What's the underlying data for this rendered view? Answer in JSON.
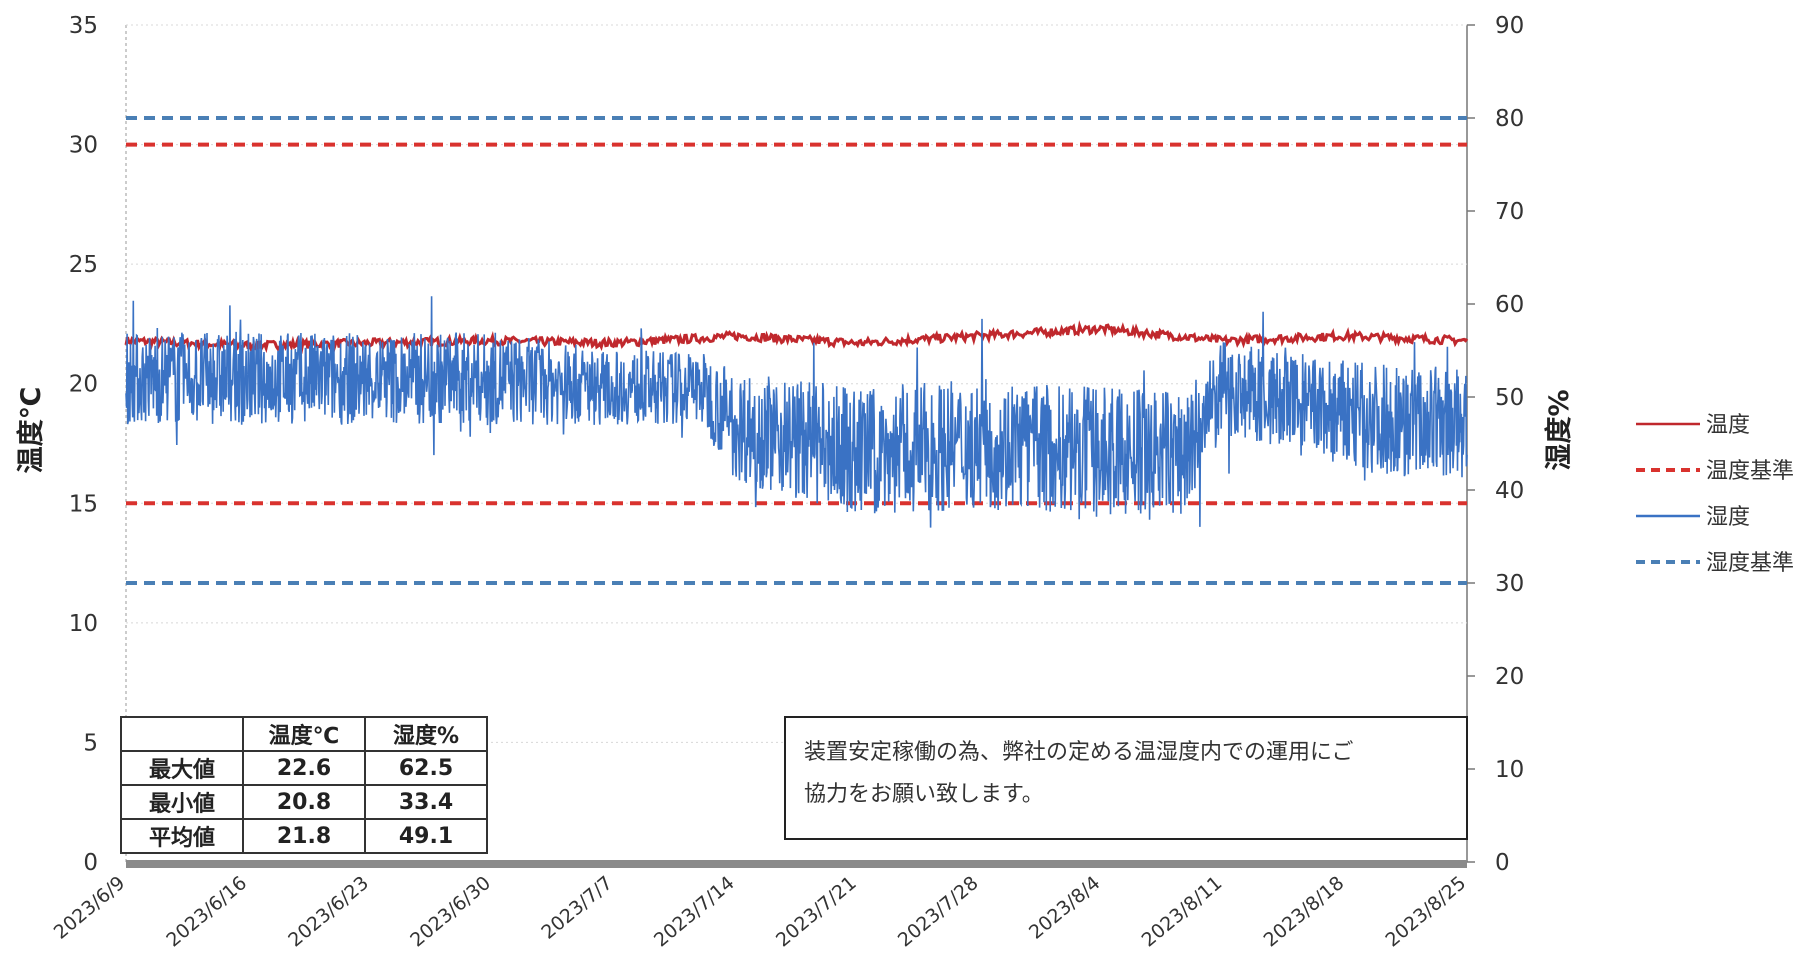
{
  "chart_data": {
    "type": "line",
    "ylabel_left": "温度℃",
    "ylabel_right": "湿度%",
    "y_left_range": [
      0,
      35
    ],
    "y_right_range": [
      0,
      90
    ],
    "y_left_ticks": [
      "0",
      "5",
      "10",
      "15",
      "20",
      "25",
      "30",
      "35"
    ],
    "y_right_ticks": [
      "0",
      "10",
      "20",
      "30",
      "40",
      "50",
      "60",
      "70",
      "80",
      "90"
    ],
    "x_range": [
      "2023-06-09",
      "2023-08-25"
    ],
    "x_ticks": [
      "2023/6/9",
      "2023/6/16",
      "2023/6/23",
      "2023/6/30",
      "2023/7/7",
      "2023/7/14",
      "2023/7/21",
      "2023/7/28",
      "2023/8/4",
      "2023/8/11",
      "2023/8/18",
      "2023/8/25"
    ],
    "grid": "horizontal",
    "legend_position": "right",
    "colors": {
      "temperature": "#c0282d",
      "temperature_limit": "#d9322e",
      "humidity": "#3a72c4",
      "humidity_limit": "#4a7fb5"
    },
    "series": [
      {
        "name": "温度",
        "axis": "left",
        "style": "solid",
        "x": [
          "2023-06-09",
          "2023-06-16",
          "2023-06-23",
          "2023-06-30",
          "2023-07-07",
          "2023-07-12",
          "2023-07-14",
          "2023-07-21",
          "2023-07-28",
          "2023-08-04",
          "2023-08-11",
          "2023-08-18",
          "2023-08-25"
        ],
        "values": [
          21.8,
          21.6,
          21.7,
          21.8,
          21.7,
          21.9,
          22.0,
          21.7,
          22.0,
          22.3,
          21.8,
          22.0,
          21.8
        ]
      },
      {
        "name": "温度基準",
        "axis": "left",
        "style": "dashed",
        "x": [
          "2023-06-09",
          "2023-08-25"
        ],
        "upper": 30,
        "lower": 15
      },
      {
        "name": "湿度",
        "axis": "right",
        "style": "solid",
        "x": [
          "2023-06-09",
          "2023-06-16",
          "2023-06-23",
          "2023-06-30",
          "2023-07-07",
          "2023-07-12",
          "2023-07-14",
          "2023-07-21",
          "2023-07-28",
          "2023-08-04",
          "2023-08-09",
          "2023-08-11",
          "2023-08-18",
          "2023-08-25"
        ],
        "values": [
          52,
          52,
          52,
          52,
          51,
          51,
          47,
          44,
          45,
          44,
          44,
          51,
          48,
          47
        ],
        "spread": [
          5,
          5,
          5,
          5,
          4,
          4,
          6,
          7,
          7,
          7,
          7,
          5,
          6,
          6
        ]
      },
      {
        "name": "湿度基準",
        "axis": "right",
        "style": "dashed",
        "x": [
          "2023-06-09",
          "2023-08-25"
        ],
        "upper": 80,
        "lower": 30
      }
    ]
  },
  "stats_table": {
    "headers": [
      "",
      "温度℃",
      "湿度%"
    ],
    "rows": [
      {
        "label": "最大値",
        "temp": "22.6",
        "hum": "62.5"
      },
      {
        "label": "最小値",
        "temp": "20.8",
        "hum": "33.4"
      },
      {
        "label": "平均値",
        "temp": "21.8",
        "hum": "49.1"
      }
    ]
  },
  "note": {
    "line1": "装置安定稼働の為、弊社の定める温湿度内での運用にご",
    "line2": "協力をお願い致します。"
  }
}
